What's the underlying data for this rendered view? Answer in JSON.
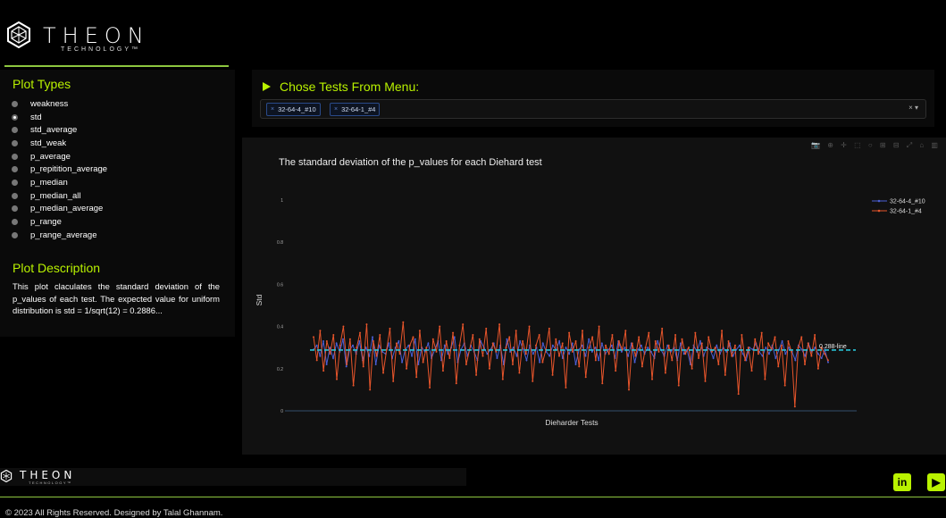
{
  "brand": {
    "name": "THEON",
    "tagline": "TECHNOLOGY™",
    "footer_tagline": "TECHNOLOGY™"
  },
  "sidebar": {
    "plot_types_title": "Plot Types",
    "plot_types": [
      {
        "label": "weakness",
        "checked": false
      },
      {
        "label": "std",
        "checked": true
      },
      {
        "label": "std_average",
        "checked": false
      },
      {
        "label": "std_weak",
        "checked": false
      },
      {
        "label": "p_average",
        "checked": false
      },
      {
        "label": "p_repitition_average",
        "checked": false
      },
      {
        "label": "p_median",
        "checked": false
      },
      {
        "label": "p_median_all",
        "checked": false
      },
      {
        "label": "p_median_average",
        "checked": false
      },
      {
        "label": "p_range",
        "checked": false
      },
      {
        "label": "p_range_average",
        "checked": false
      }
    ],
    "description_title": "Plot Description",
    "description": "This plot claculates the standard deviation of the p_values of each test. The expected value for uniform distribution is std = 1/sqrt(12) = 0.2886..."
  },
  "chooser": {
    "title": "Chose Tests From Menu:",
    "selected": [
      "32-64-4_#10",
      "32-64-1_#4"
    ],
    "clear": "×",
    "caret": "▾"
  },
  "colors": {
    "accent": "#b9f200",
    "series_a": "#4a5fd6",
    "series_b": "#e8552b",
    "ref_line": "#29c4d8"
  },
  "chart_data": {
    "type": "line",
    "title": "The standard deviation of the p_values for each Diehard test",
    "xlabel": "Dieharder Tests",
    "ylabel": "Std",
    "ylim": [
      0,
      1.05
    ],
    "yticks": [
      "0",
      "0.2",
      "0.4",
      "0.6",
      "0.8",
      "1"
    ],
    "legend_position": "top-right",
    "reference_line": {
      "value": 0.288,
      "label": "0.288-line"
    },
    "series": [
      {
        "name": "32-64-4_#10",
        "values": [
          0.29,
          0.31,
          0.26,
          0.33,
          0.22,
          0.3,
          0.25,
          0.32,
          0.28,
          0.34,
          0.21,
          0.29,
          0.31,
          0.27,
          0.33,
          0.24,
          0.3,
          0.26,
          0.35,
          0.22,
          0.31,
          0.28,
          0.27,
          0.32,
          0.25,
          0.3,
          0.33,
          0.23,
          0.29,
          0.31,
          0.26,
          0.34,
          0.22,
          0.3,
          0.28,
          0.32,
          0.25,
          0.29,
          0.33,
          0.24,
          0.31,
          0.27,
          0.3,
          0.35,
          0.23,
          0.29,
          0.32,
          0.26,
          0.31,
          0.28,
          0.24,
          0.33,
          0.3,
          0.27,
          0.29,
          0.32,
          0.25,
          0.31,
          0.22,
          0.34,
          0.28,
          0.3,
          0.26,
          0.33,
          0.29,
          0.24,
          0.31,
          0.27,
          0.3,
          0.23,
          0.32,
          0.28,
          0.26,
          0.31,
          0.29,
          0.33,
          0.25,
          0.3,
          0.27,
          0.32,
          0.22,
          0.29,
          0.31,
          0.26,
          0.34,
          0.28,
          0.3,
          0.24,
          0.32,
          0.27,
          0.29,
          0.31,
          0.25,
          0.33,
          0.28,
          0.3,
          0.26,
          0.32,
          0.23,
          0.29,
          0.31,
          0.27,
          0.3,
          0.28,
          0.25,
          0.33,
          0.29,
          0.26,
          0.31,
          0.28,
          0.3,
          0.24,
          0.32,
          0.27,
          0.29,
          0.22,
          0.31,
          0.28,
          0.33,
          0.26,
          0.3,
          0.29,
          0.25,
          0.31,
          0.27,
          0.3,
          0.28,
          0.32,
          0.26,
          0.29,
          0.31,
          0.27,
          0.24,
          0.3,
          0.29,
          0.32,
          0.28,
          0.26,
          0.3,
          0.27,
          0.31,
          0.25,
          0.29,
          0.33,
          0.27,
          0.3,
          0.28,
          0.24,
          0.31,
          0.29,
          0.26,
          0.32,
          0.28,
          0.3,
          0.27,
          0.25,
          0.29,
          0.23
        ]
      },
      {
        "name": "32-64-1_#4",
        "values": [
          0.35,
          0.24,
          0.38,
          0.19,
          0.33,
          0.27,
          0.36,
          0.15,
          0.31,
          0.4,
          0.22,
          0.34,
          0.12,
          0.3,
          0.37,
          0.21,
          0.41,
          0.1,
          0.33,
          0.26,
          0.36,
          0.18,
          0.29,
          0.39,
          0.14,
          0.32,
          0.27,
          0.42,
          0.2,
          0.31,
          0.35,
          0.16,
          0.38,
          0.23,
          0.3,
          0.11,
          0.34,
          0.28,
          0.4,
          0.19,
          0.33,
          0.25,
          0.37,
          0.13,
          0.31,
          0.41,
          0.22,
          0.29,
          0.36,
          0.17,
          0.34,
          0.26,
          0.39,
          0.2,
          0.32,
          0.28,
          0.41,
          0.15,
          0.3,
          0.35,
          0.22,
          0.38,
          0.18,
          0.33,
          0.27,
          0.4,
          0.14,
          0.31,
          0.36,
          0.23,
          0.29,
          0.39,
          0.17,
          0.34,
          0.26,
          0.32,
          0.11,
          0.37,
          0.28,
          0.33,
          0.21,
          0.38,
          0.16,
          0.3,
          0.35,
          0.24,
          0.4,
          0.13,
          0.31,
          0.27,
          0.36,
          0.19,
          0.33,
          0.29,
          0.38,
          0.1,
          0.32,
          0.26,
          0.35,
          0.21,
          0.3,
          0.37,
          0.15,
          0.33,
          0.28,
          0.39,
          0.18,
          0.31,
          0.24,
          0.36,
          0.12,
          0.34,
          0.27,
          0.3,
          0.2,
          0.37,
          0.25,
          0.32,
          0.14,
          0.35,
          0.28,
          0.3,
          0.22,
          0.38,
          0.17,
          0.33,
          0.26,
          0.31,
          0.08,
          0.36,
          0.24,
          0.3,
          0.19,
          0.34,
          0.27,
          0.37,
          0.15,
          0.32,
          0.29,
          0.35,
          0.21,
          0.31,
          0.12,
          0.33,
          0.28,
          0.02,
          0.3,
          0.35,
          0.22,
          0.32,
          0.26,
          0.36,
          0.2,
          0.3,
          0.27,
          0.24
        ]
      }
    ]
  },
  "footer": {
    "copyright": "© 2023 All Rights Reserved. Designed by Talal Ghannam.",
    "social": [
      {
        "icon": "linkedin-icon",
        "label": "in"
      },
      {
        "icon": "youtube-icon",
        "label": "▶"
      }
    ]
  }
}
